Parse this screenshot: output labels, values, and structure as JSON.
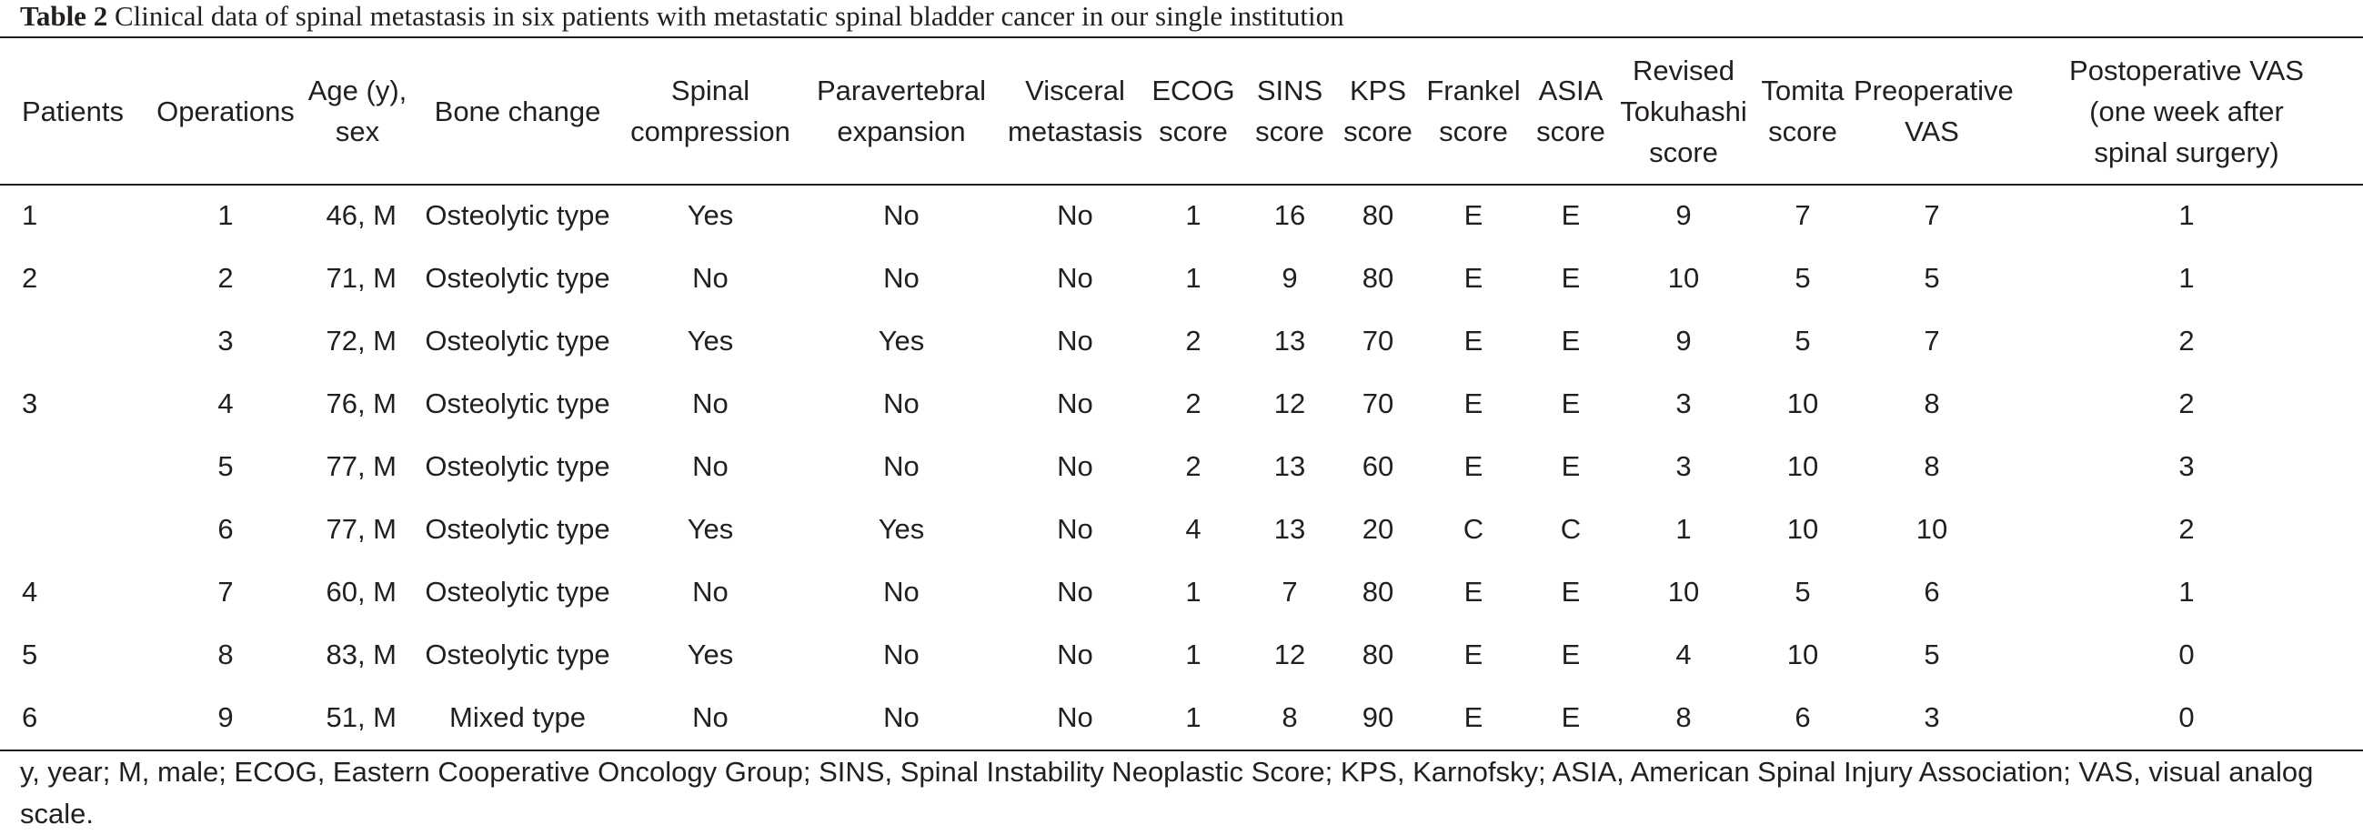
{
  "caption": {
    "label": "Table 2",
    "text": "Clinical data of spinal metastasis in six patients with metastatic spinal bladder cancer in our single institution"
  },
  "table": {
    "headers": [
      [
        "Patients"
      ],
      [
        "Operations"
      ],
      [
        "Age (y),",
        "sex"
      ],
      [
        "Bone change"
      ],
      [
        "Spinal",
        "compression"
      ],
      [
        "Paravertebral",
        "expansion"
      ],
      [
        "Visceral",
        "metastasis"
      ],
      [
        "ECOG",
        "score"
      ],
      [
        "SINS",
        "score"
      ],
      [
        "KPS",
        "score"
      ],
      [
        "Frankel",
        "score"
      ],
      [
        "ASIA",
        "score"
      ],
      [
        "Revised",
        "Tokuhashi",
        "score"
      ],
      [
        "Tomita",
        "score"
      ],
      [
        "Preoperative",
        "VAS"
      ],
      [
        "Postoperative VAS",
        "(one week after",
        "spinal surgery)"
      ]
    ],
    "rows": [
      [
        "1",
        "1",
        "46, M",
        "Osteolytic type",
        "Yes",
        "No",
        "No",
        "1",
        "16",
        "80",
        "E",
        "E",
        "9",
        "7",
        "7",
        "1"
      ],
      [
        "2",
        "2",
        "71, M",
        "Osteolytic type",
        "No",
        "No",
        "No",
        "1",
        "9",
        "80",
        "E",
        "E",
        "10",
        "5",
        "5",
        "1"
      ],
      [
        "",
        "3",
        "72, M",
        "Osteolytic type",
        "Yes",
        "Yes",
        "No",
        "2",
        "13",
        "70",
        "E",
        "E",
        "9",
        "5",
        "7",
        "2"
      ],
      [
        "3",
        "4",
        "76, M",
        "Osteolytic type",
        "No",
        "No",
        "No",
        "2",
        "12",
        "70",
        "E",
        "E",
        "3",
        "10",
        "8",
        "2"
      ],
      [
        "",
        "5",
        "77, M",
        "Osteolytic type",
        "No",
        "No",
        "No",
        "2",
        "13",
        "60",
        "E",
        "E",
        "3",
        "10",
        "8",
        "3"
      ],
      [
        "",
        "6",
        "77, M",
        "Osteolytic type",
        "Yes",
        "Yes",
        "No",
        "4",
        "13",
        "20",
        "C",
        "C",
        "1",
        "10",
        "10",
        "2"
      ],
      [
        "4",
        "7",
        "60, M",
        "Osteolytic type",
        "No",
        "No",
        "No",
        "1",
        "7",
        "80",
        "E",
        "E",
        "10",
        "5",
        "6",
        "1"
      ],
      [
        "5",
        "8",
        "83, M",
        "Osteolytic type",
        "Yes",
        "No",
        "No",
        "1",
        "12",
        "80",
        "E",
        "E",
        "4",
        "10",
        "5",
        "0"
      ],
      [
        "6",
        "9",
        "51, M",
        "Mixed type",
        "No",
        "No",
        "No",
        "1",
        "8",
        "90",
        "E",
        "E",
        "8",
        "6",
        "3",
        "0"
      ]
    ]
  },
  "footnote": "y, year; M, male; ECOG, Eastern Cooperative Oncology Group; SINS, Spinal Instability Neoplastic Score; KPS, Karnofsky; ASIA, American Spinal Injury Association; VAS, visual analog scale."
}
